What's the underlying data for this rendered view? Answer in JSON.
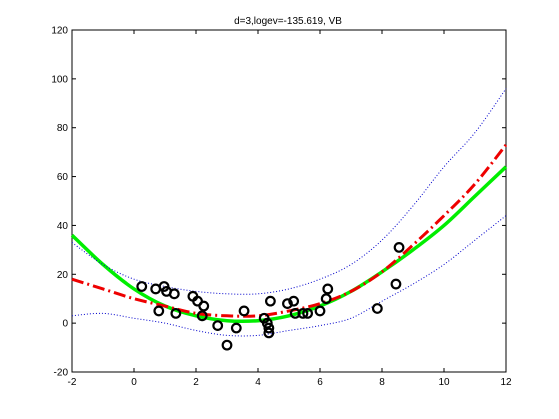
{
  "chart_data": {
    "type": "scatter",
    "title": "d=3,logev=-135.619, VB",
    "xlabel": "",
    "ylabel": "",
    "xlim": [
      -2,
      12
    ],
    "ylim": [
      -20,
      120
    ],
    "x_ticks": [
      -2,
      0,
      2,
      4,
      6,
      8,
      10,
      12
    ],
    "y_ticks": [
      -20,
      0,
      20,
      40,
      60,
      80,
      100,
      120
    ],
    "x_tick_labels": [
      "-2",
      "0",
      "2",
      "4",
      "6",
      "8",
      "10",
      "12"
    ],
    "y_tick_labels": [
      "-20",
      "0",
      "20",
      "40",
      "60",
      "80",
      "100",
      "120"
    ],
    "grid": false,
    "legend": "none",
    "points": {
      "x": [
        0.25,
        0.7,
        0.8,
        0.97,
        1.05,
        1.3,
        1.35,
        1.9,
        2.05,
        2.2,
        2.25,
        2.7,
        3.0,
        3.3,
        3.55,
        4.2,
        4.3,
        4.35,
        4.35,
        4.4,
        4.95,
        5.15,
        5.2,
        5.45,
        5.6,
        6.0,
        6.2,
        6.25,
        7.85,
        8.45,
        8.55
      ],
      "y": [
        15,
        14,
        5,
        15,
        13,
        12,
        4,
        11,
        9,
        3,
        7,
        -1,
        -9,
        -2,
        5,
        2,
        0,
        -2,
        -4,
        9,
        8,
        9,
        4,
        4,
        4,
        5,
        10,
        14,
        6,
        16,
        31
      ],
      "marker": "circle",
      "color": "#000000"
    },
    "curves": {
      "x": [
        -2,
        -1,
        0,
        1,
        2,
        3,
        4,
        5,
        6,
        7,
        8,
        9,
        10,
        11,
        12
      ],
      "series": [
        {
          "style": "solid",
          "color": "#00ee00",
          "values": [
            36,
            24,
            14,
            7,
            3,
            1,
            1,
            3,
            7,
            13,
            21,
            30,
            40,
            52,
            64
          ]
        },
        {
          "style": "dash-dot",
          "color": "#ee0000",
          "values": [
            18,
            14,
            10,
            7,
            4,
            3,
            3,
            5,
            8,
            13,
            21,
            32,
            44,
            57,
            73
          ]
        },
        {
          "style": "dotted",
          "color": "#0000cc",
          "values": [
            33,
            24,
            18,
            15,
            13,
            12,
            12,
            14,
            18,
            24,
            34,
            48,
            64,
            78,
            96
          ]
        },
        {
          "style": "dotted",
          "color": "#0000cc",
          "values": [
            3,
            4,
            2,
            0,
            -3,
            -5,
            -5,
            -3,
            -1,
            2,
            9,
            16,
            24,
            34,
            44
          ]
        }
      ]
    }
  }
}
